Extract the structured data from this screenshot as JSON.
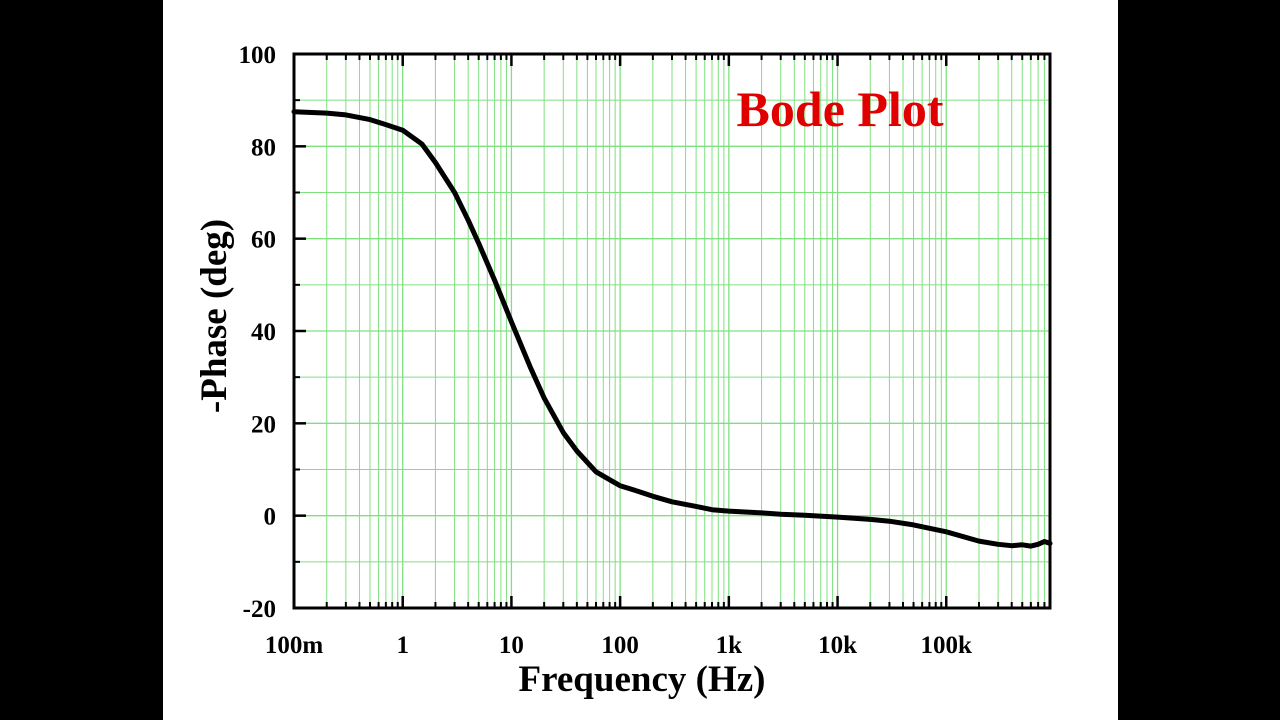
{
  "chart_data": {
    "type": "line",
    "title": "Bode Plot",
    "xlabel": "Frequency (Hz)",
    "ylabel": "-Phase (deg)",
    "x_scale": "log",
    "xlim": [
      0.1,
      900000
    ],
    "ylim": [
      -20,
      100
    ],
    "x_ticks": [
      {
        "value": 0.1,
        "label": "100m"
      },
      {
        "value": 1,
        "label": "1"
      },
      {
        "value": 10,
        "label": "10"
      },
      {
        "value": 100,
        "label": "100"
      },
      {
        "value": 1000,
        "label": "1k"
      },
      {
        "value": 10000,
        "label": "10k"
      },
      {
        "value": 100000,
        "label": "100k"
      }
    ],
    "y_ticks": [
      {
        "value": -20,
        "label": "-20"
      },
      {
        "value": 0,
        "label": "0"
      },
      {
        "value": 20,
        "label": "20"
      },
      {
        "value": 40,
        "label": "40"
      },
      {
        "value": 60,
        "label": "60"
      },
      {
        "value": 80,
        "label": "80"
      },
      {
        "value": 100,
        "label": "100"
      }
    ],
    "grid": true,
    "legend": "none",
    "series": [
      {
        "x": [
          0.1,
          0.2,
          0.3,
          0.5,
          0.7,
          1,
          1.5,
          2,
          3,
          4,
          5,
          7,
          10,
          15,
          20,
          30,
          40,
          60,
          80,
          100,
          150,
          200,
          300,
          500,
          700,
          1000,
          2000,
          3000,
          5000,
          10000,
          20000,
          30000,
          50000,
          100000,
          200000,
          300000,
          400000,
          500000,
          600000,
          700000,
          800000,
          900000
        ],
        "y": [
          87.5,
          87.2,
          86.8,
          85.8,
          84.7,
          83.5,
          80.5,
          76.5,
          70,
          64,
          59,
          51,
          42,
          32,
          25.5,
          18,
          14,
          9.5,
          7.8,
          6.5,
          5.2,
          4.2,
          3,
          2,
          1.3,
          1,
          0.6,
          0.3,
          0.1,
          -0.3,
          -0.8,
          -1.2,
          -2,
          -3.5,
          -5.5,
          -6.2,
          -6.5,
          -6.3,
          -6.6,
          -6.2,
          -5.6,
          -6
        ]
      }
    ]
  },
  "colors": {
    "background": "#000000",
    "panel": "#ffffff",
    "grid": "#7fe07f",
    "line": "#000000",
    "axis": "#000000",
    "title": "#e00000"
  }
}
